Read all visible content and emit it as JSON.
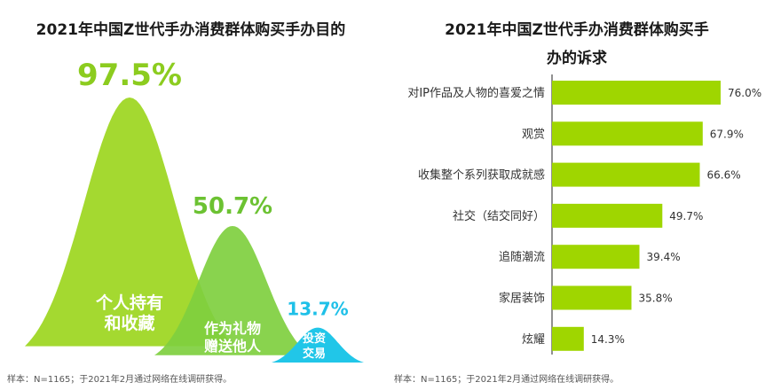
{
  "chart_data": [
    {
      "type": "area",
      "title": "2021年中国Z世代手办消费群体购买手办目的",
      "categories": [
        "个人持有和收藏",
        "作为礼物赠送他人",
        "投资交易"
      ],
      "values": [
        97.5,
        50.7,
        13.7
      ],
      "value_labels": [
        "97.5%",
        "50.7%",
        "13.7%"
      ],
      "category_lines": [
        [
          "个人持有",
          "和收藏"
        ],
        [
          "作为礼物",
          "赠送他人"
        ],
        [
          "投资",
          "交易"
        ]
      ],
      "colors": [
        "#a4d930",
        "#7fcf3f",
        "#21c6e8"
      ],
      "label_colors": [
        "#8ccc1f",
        "#6cc232",
        "#1ec0e8"
      ],
      "source": "样本：N=1165；于2021年2月通过网络在线调研获得。"
    },
    {
      "type": "bar",
      "orientation": "horizontal",
      "title": "2021年中国Z世代手办消费群体购买手办的诉求",
      "categories": [
        "对IP作品及人物的喜爱之情",
        "观赏",
        "收集整个系列获取成就感",
        "社交（结交同好）",
        "追随潮流",
        "家居装饰",
        "炫耀"
      ],
      "values": [
        76.0,
        67.9,
        66.6,
        49.7,
        39.4,
        35.8,
        14.3
      ],
      "value_labels": [
        "76.0%",
        "67.9%",
        "66.6%",
        "49.7%",
        "39.4%",
        "35.8%",
        "14.3%"
      ],
      "bar_color": "#9fd600",
      "source": "样本：N=1165；于2021年2月通过网络在线调研获得。"
    }
  ]
}
